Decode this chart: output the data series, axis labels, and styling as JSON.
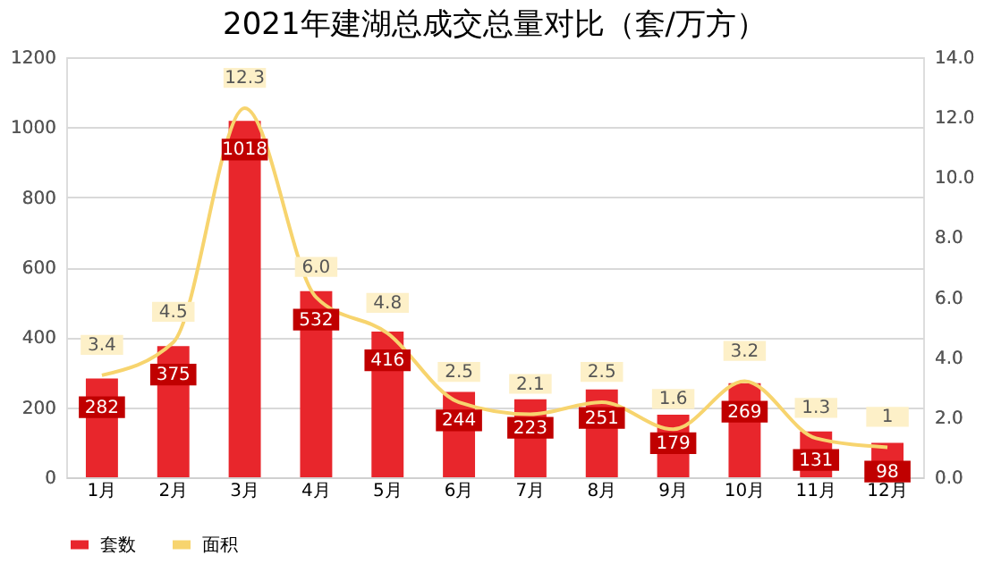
{
  "chart_data": {
    "type": "bar",
    "title": "2021年建湖总成交总量对比（套/万方）",
    "categories": [
      "1月",
      "2月",
      "3月",
      "4月",
      "5月",
      "6月",
      "7月",
      "8月",
      "9月",
      "10月",
      "11月",
      "12月"
    ],
    "series": [
      {
        "name": "套数",
        "color": "#e8262c",
        "values": [
          282,
          375,
          1018,
          532,
          416,
          244,
          223,
          251,
          179,
          269,
          131,
          98
        ],
        "value_labels": [
          "282",
          "375",
          "1018",
          "532",
          "416",
          "244",
          "223",
          "251",
          "179",
          "269",
          "131",
          "98"
        ]
      },
      {
        "name": "面积",
        "type": "line",
        "axis": "y2",
        "color": "#f7d46e",
        "values": [
          3.4,
          4.5,
          12.3,
          6.0,
          4.8,
          2.5,
          2.1,
          2.5,
          1.6,
          3.2,
          1.3,
          1
        ],
        "value_labels": [
          "3.4",
          "4.5",
          "12.3",
          "6.0",
          "4.8",
          "2.5",
          "2.1",
          "2.5",
          "1.6",
          "3.2",
          "1.3",
          "1"
        ]
      }
    ],
    "ylim": [
      0,
      1200
    ],
    "yticks": [
      0,
      200,
      400,
      600,
      800,
      1000,
      1200
    ],
    "y2lim": [
      0,
      14
    ],
    "y2ticks": [
      {
        "value": 0,
        "label": "0.0"
      },
      {
        "value": 2,
        "label": "2.0"
      },
      {
        "value": 4,
        "label": "4.0"
      },
      {
        "value": 6,
        "label": "6.0"
      },
      {
        "value": 8,
        "label": "8.0"
      },
      {
        "value": 10,
        "label": "10.0"
      },
      {
        "value": 12,
        "label": "12.0"
      },
      {
        "value": 14,
        "label": "14.0"
      }
    ],
    "grid": "y",
    "legend": "bottom"
  }
}
